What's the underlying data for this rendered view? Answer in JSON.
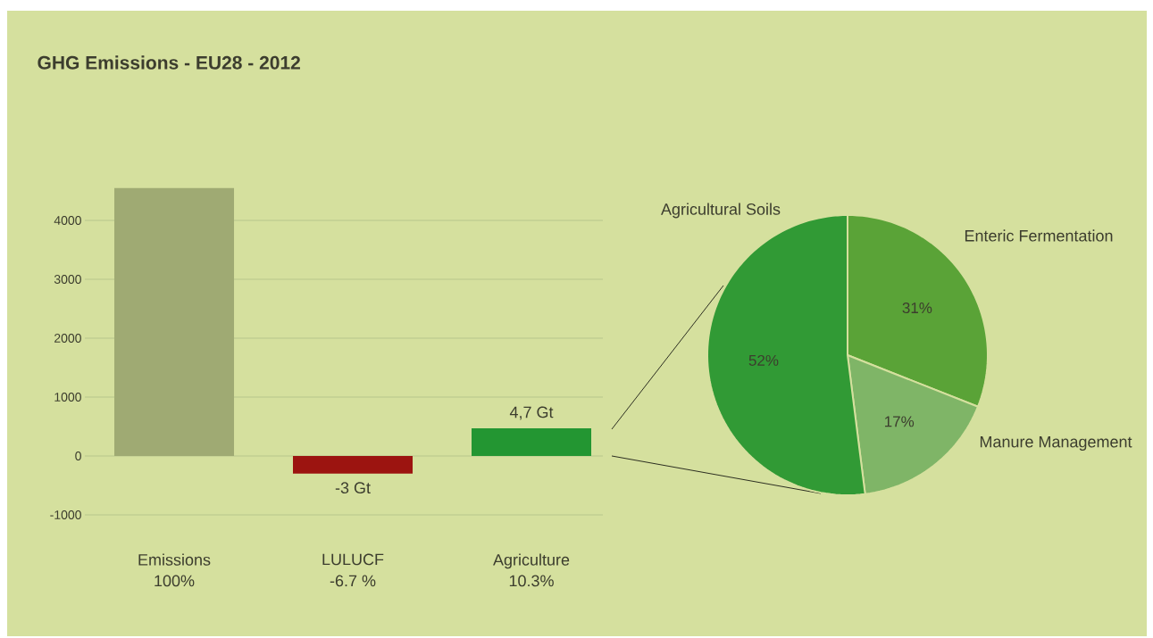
{
  "chart_data": [
    {
      "type": "bar",
      "title": "GHG Emissions - EU28 - 2012",
      "categories": [
        "Emissions",
        "LULUCF",
        "Agriculture"
      ],
      "values": [
        4550,
        -300,
        470
      ],
      "colors": [
        "#9faa73",
        "#9c1410",
        "#239632"
      ],
      "annotations": [
        "100%",
        "-6.7 %",
        "10.3%",
        "-3 Gt",
        "4,7 Gt"
      ],
      "ylim": [
        -1000,
        4550
      ],
      "yticks": [
        -1000,
        0,
        1000,
        2000,
        3000,
        4000
      ],
      "grid": "y"
    },
    {
      "type": "pie",
      "categories": [
        "Enteric Fermentation",
        "Manure Management",
        "Agricultural Soils"
      ],
      "values": [
        31,
        17,
        52
      ],
      "colors": [
        "#5aa337",
        "#7fb567",
        "#319a35"
      ],
      "value_labels": [
        "31%",
        "17%",
        "52%"
      ]
    }
  ]
}
